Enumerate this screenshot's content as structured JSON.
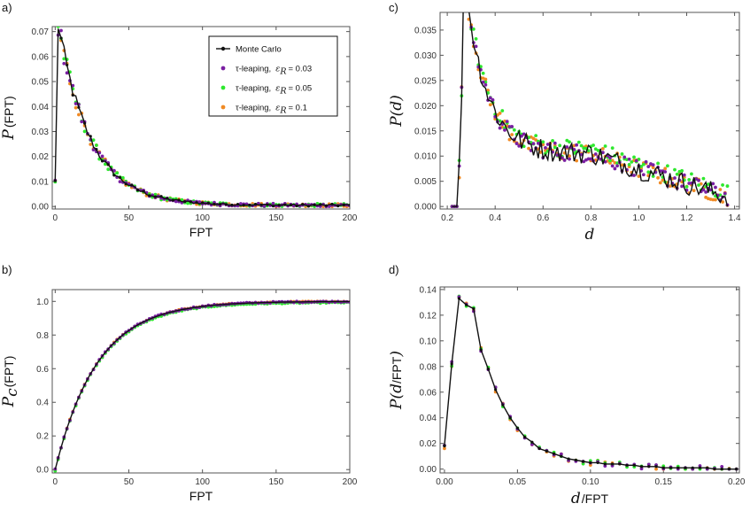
{
  "colors": {
    "monte_carlo": "#111111",
    "tau_003": "#7a1fa2",
    "tau_005": "#2ee82e",
    "tau_01": "#f08a24",
    "frame": "#555555"
  },
  "legend": {
    "entries": [
      {
        "key": "mc",
        "label": "Monte Carlo",
        "eps": ""
      },
      {
        "key": "t003",
        "label": "τ-leaping,",
        "eps": "ε_R = 0.03"
      },
      {
        "key": "t005",
        "label": "τ-leaping,",
        "eps": "ε_R = 0.05"
      },
      {
        "key": "t01",
        "label": "τ-leaping,",
        "eps": "ε_R = 0.1"
      }
    ]
  },
  "chart_data": [
    {
      "panel": "a)",
      "type": "line",
      "xlabel": "FPT",
      "ylabel": "P(FPT)",
      "xlim": [
        -2,
        200
      ],
      "ylim": [
        -0.001,
        0.072
      ],
      "xticks": [
        0,
        50,
        100,
        150,
        200
      ],
      "yticks": [
        0.0,
        0.01,
        0.02,
        0.03,
        0.04,
        0.05,
        0.06,
        0.07
      ],
      "ytick_labels": [
        "0.00",
        "0.01",
        "0.02",
        "0.03",
        "0.04",
        "0.05",
        "0.06",
        "0.07"
      ],
      "legend_position": "top-right",
      "curve": "fpt_density"
    },
    {
      "panel": "b)",
      "type": "line",
      "xlabel": "FPT",
      "ylabel": "P_c(FPT)",
      "xlim": [
        -2,
        200
      ],
      "ylim": [
        -0.02,
        1.07
      ],
      "xticks": [
        0,
        50,
        100,
        150,
        200
      ],
      "yticks": [
        0.0,
        0.2,
        0.4,
        0.6,
        0.8,
        1.0
      ],
      "ytick_labels": [
        "0.0",
        "0.2",
        "0.4",
        "0.6",
        "0.8",
        "1.0"
      ],
      "curve": "fpt_cdf"
    },
    {
      "panel": "c)",
      "type": "line",
      "xlabel": "d",
      "ylabel": "P(d)",
      "xlim": [
        0.17,
        1.42
      ],
      "ylim": [
        -0.0005,
        0.0385
      ],
      "xticks": [
        0.2,
        0.4,
        0.6,
        0.8,
        1.0,
        1.2,
        1.4
      ],
      "xtick_labels": [
        "0.2",
        "0.4",
        "0.6",
        "0.8",
        "1.0",
        "1.2",
        "1.4"
      ],
      "yticks": [
        0.0,
        0.005,
        0.01,
        0.015,
        0.02,
        0.025,
        0.03,
        0.035
      ],
      "ytick_labels": [
        "0.000",
        "0.005",
        "0.010",
        "0.015",
        "0.020",
        "0.025",
        "0.030",
        "0.035"
      ],
      "curve": "distance_density"
    },
    {
      "panel": "d)",
      "type": "line",
      "xlabel": "d/FPT",
      "ylabel": "P(d/FPT)",
      "xlim": [
        -0.003,
        0.202
      ],
      "ylim": [
        -0.003,
        0.142
      ],
      "xticks": [
        0.0,
        0.05,
        0.1,
        0.15,
        0.2
      ],
      "xtick_labels": [
        "0.00",
        "0.05",
        "0.10",
        "0.15",
        "0.20"
      ],
      "yticks": [
        0.0,
        0.02,
        0.04,
        0.06,
        0.08,
        0.1,
        0.12,
        0.14
      ],
      "ytick_labels": [
        "0.00",
        "0.02",
        "0.04",
        "0.06",
        "0.08",
        "0.10",
        "0.12",
        "0.14"
      ],
      "curve": "speed_density",
      "points": {
        "x": [
          0.0,
          0.005,
          0.01,
          0.015,
          0.02,
          0.025,
          0.03,
          0.035,
          0.04,
          0.045,
          0.05,
          0.055,
          0.06,
          0.065,
          0.07,
          0.075,
          0.08,
          0.085,
          0.09,
          0.095,
          0.1,
          0.105,
          0.11,
          0.115,
          0.12,
          0.125,
          0.13,
          0.135,
          0.14,
          0.145,
          0.15,
          0.155,
          0.16,
          0.165,
          0.17,
          0.175,
          0.18,
          0.185,
          0.19,
          0.195,
          0.2
        ],
        "y": [
          0.018,
          0.082,
          0.133,
          0.128,
          0.125,
          0.093,
          0.078,
          0.062,
          0.05,
          0.04,
          0.032,
          0.025,
          0.021,
          0.016,
          0.014,
          0.012,
          0.01,
          0.008,
          0.007,
          0.006,
          0.005,
          0.005,
          0.004,
          0.004,
          0.004,
          0.003,
          0.003,
          0.002,
          0.002,
          0.002,
          0.001,
          0.001,
          0.001,
          0.001,
          0.001,
          0.001,
          0.001,
          0.0,
          0.0,
          0.0,
          0.0
        ]
      }
    }
  ]
}
